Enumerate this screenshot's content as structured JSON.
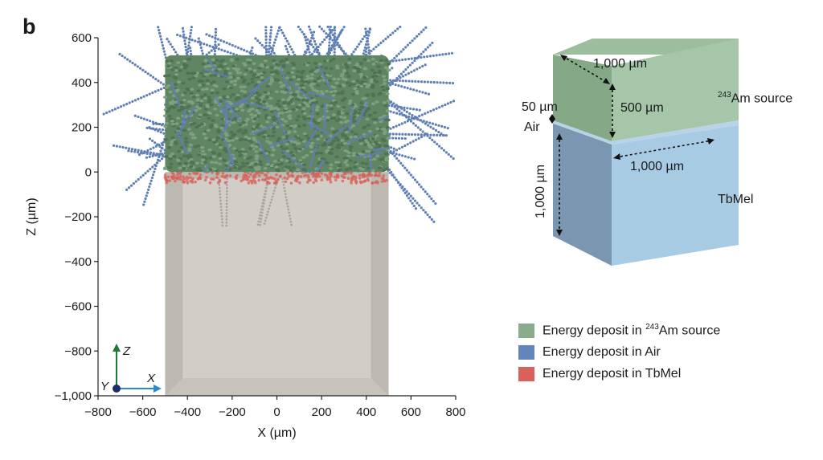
{
  "panel_label": "b",
  "chart_data": {
    "type": "scatter",
    "xlabel": "X (µm)",
    "ylabel": "Z (µm)",
    "xlim": [
      -800,
      800
    ],
    "ylim": [
      -1000,
      600
    ],
    "x_ticks": [
      "−800",
      "−600",
      "−400",
      "−200",
      "0",
      "200",
      "400",
      "600",
      "800"
    ],
    "y_ticks": [
      "600",
      "400",
      "200",
      "0",
      "−200",
      "−400",
      "−600",
      "−800",
      "−1,000"
    ],
    "series": [
      {
        "name": "Energy deposit in 243Am source",
        "color": "#6f9670",
        "region": {
          "x": [
            -500,
            500
          ],
          "z": [
            0,
            500
          ]
        }
      },
      {
        "name": "Energy deposit in Air",
        "color": "#5f7fb5"
      },
      {
        "name": "Energy deposit in TbMel",
        "color": "#d8625a",
        "region": {
          "x": [
            -500,
            500
          ],
          "z": [
            -50,
            0
          ]
        }
      }
    ],
    "tbmel_block": {
      "x": [
        -500,
        500
      ],
      "z": [
        -1000,
        0
      ],
      "color": "#c9c4bc"
    },
    "axes_indicator": {
      "z": "Z",
      "x": "X",
      "y": "Y"
    }
  },
  "schematic": {
    "source_width": "1,000 µm",
    "source_height": "500 µm",
    "gap": "50 µm",
    "air": "Air",
    "source_name_sup": "243",
    "source_name": "Am source",
    "tbmel_width": "1,000 µm",
    "tbmel_height": "1,000 µm",
    "tbmel_name": "TbMel",
    "colors": {
      "source_front": "#a5c6a8",
      "source_side": "#85a887",
      "source_top": "#9cbd9e",
      "tbmel_front": "#a8cbe4",
      "tbmel_side": "#7b96b0",
      "tbmel_top": "#c2dcee"
    }
  },
  "legend": {
    "am_prefix": "Energy deposit in ",
    "am_sup": "243",
    "am_suffix": "Am source",
    "air": "Energy deposit in Air",
    "tbmel": "Energy deposit in TbMel",
    "colors": {
      "am": "#8aab8c",
      "air": "#6485bb",
      "tbmel": "#d8625a"
    }
  }
}
